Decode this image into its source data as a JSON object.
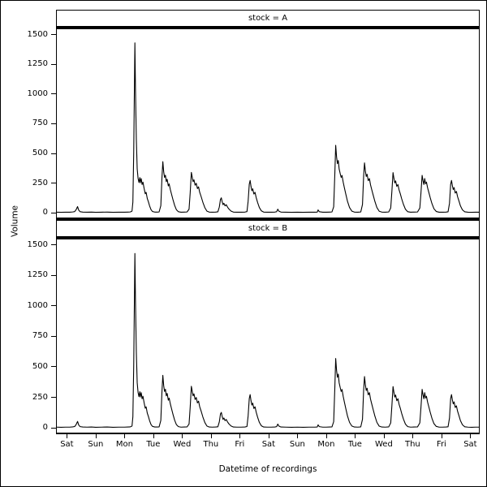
{
  "figure": {
    "background": "#ffffff",
    "line_color": "#000000",
    "text_color": "#000000"
  },
  "chart_data": {
    "type": "line",
    "title": "",
    "xlabel": "Datetime of recordings",
    "ylabel": "Volume",
    "facets": [
      {
        "title": "stock = A",
        "series": "volume"
      },
      {
        "title": "stock = B",
        "series": "volume"
      }
    ],
    "x_units": "days",
    "x_tick_values": [
      0,
      1,
      2,
      3,
      4,
      5,
      6,
      7,
      8,
      9,
      10,
      11,
      12,
      13,
      14
    ],
    "x_tick_labels": [
      "Sat",
      "Sun",
      "Mon",
      "Tue",
      "Wed",
      "Thu",
      "Fri",
      "Sat",
      "Sun",
      "Mon",
      "Tue",
      "Wed",
      "Thu",
      "Fri",
      "Sat"
    ],
    "y_tick_values": [
      0,
      250,
      500,
      750,
      1000,
      1250,
      1500
    ],
    "y_tick_labels": [
      "0",
      "250",
      "500",
      "750",
      "1000",
      "1250",
      "1500"
    ],
    "xlim": [
      -0.35,
      14.3
    ],
    "ylim": [
      -40,
      1545
    ],
    "grid": false,
    "legend": false,
    "series": {
      "volume": [
        [
          -0.35,
          5
        ],
        [
          -0.2,
          4
        ],
        [
          -0.05,
          5
        ],
        [
          0.1,
          5
        ],
        [
          0.2,
          7
        ],
        [
          0.27,
          10
        ],
        [
          0.32,
          26
        ],
        [
          0.37,
          52
        ],
        [
          0.41,
          22
        ],
        [
          0.46,
          9
        ],
        [
          0.55,
          6
        ],
        [
          0.7,
          5
        ],
        [
          0.85,
          6
        ],
        [
          1.0,
          4
        ],
        [
          1.2,
          5
        ],
        [
          1.4,
          6
        ],
        [
          1.6,
          4
        ],
        [
          1.8,
          5
        ],
        [
          2.0,
          5
        ],
        [
          2.12,
          6
        ],
        [
          2.2,
          7
        ],
        [
          2.26,
          14
        ],
        [
          2.29,
          90
        ],
        [
          2.32,
          520
        ],
        [
          2.36,
          1430
        ],
        [
          2.38,
          1050
        ],
        [
          2.41,
          620
        ],
        [
          2.44,
          370
        ],
        [
          2.47,
          290
        ],
        [
          2.5,
          255
        ],
        [
          2.53,
          296
        ],
        [
          2.55,
          252
        ],
        [
          2.58,
          288
        ],
        [
          2.61,
          238
        ],
        [
          2.64,
          258
        ],
        [
          2.68,
          205
        ],
        [
          2.72,
          160
        ],
        [
          2.75,
          172
        ],
        [
          2.79,
          120
        ],
        [
          2.83,
          92
        ],
        [
          2.87,
          58
        ],
        [
          2.92,
          26
        ],
        [
          2.97,
          11
        ],
        [
          3.05,
          6
        ],
        [
          3.14,
          6
        ],
        [
          3.2,
          7
        ],
        [
          3.26,
          60
        ],
        [
          3.3,
          300
        ],
        [
          3.33,
          430
        ],
        [
          3.36,
          345
        ],
        [
          3.39,
          298
        ],
        [
          3.42,
          316
        ],
        [
          3.45,
          262
        ],
        [
          3.48,
          282
        ],
        [
          3.52,
          226
        ],
        [
          3.55,
          243
        ],
        [
          3.59,
          196
        ],
        [
          3.63,
          158
        ],
        [
          3.68,
          112
        ],
        [
          3.74,
          62
        ],
        [
          3.8,
          26
        ],
        [
          3.87,
          9
        ],
        [
          3.96,
          5
        ],
        [
          4.08,
          6
        ],
        [
          4.17,
          7
        ],
        [
          4.24,
          30
        ],
        [
          4.28,
          170
        ],
        [
          4.32,
          340
        ],
        [
          4.35,
          300
        ],
        [
          4.38,
          262
        ],
        [
          4.41,
          278
        ],
        [
          4.45,
          232
        ],
        [
          4.49,
          248
        ],
        [
          4.53,
          204
        ],
        [
          4.57,
          218
        ],
        [
          4.61,
          172
        ],
        [
          4.66,
          136
        ],
        [
          4.72,
          88
        ],
        [
          4.79,
          42
        ],
        [
          4.86,
          14
        ],
        [
          4.94,
          6
        ],
        [
          5.05,
          5
        ],
        [
          5.16,
          6
        ],
        [
          5.24,
          8
        ],
        [
          5.29,
          48
        ],
        [
          5.33,
          112
        ],
        [
          5.36,
          126
        ],
        [
          5.39,
          92
        ],
        [
          5.42,
          68
        ],
        [
          5.45,
          80
        ],
        [
          5.49,
          58
        ],
        [
          5.53,
          68
        ],
        [
          5.58,
          46
        ],
        [
          5.63,
          30
        ],
        [
          5.7,
          14
        ],
        [
          5.78,
          6
        ],
        [
          5.9,
          5
        ],
        [
          6.05,
          5
        ],
        [
          6.18,
          6
        ],
        [
          6.25,
          10
        ],
        [
          6.29,
          96
        ],
        [
          6.33,
          240
        ],
        [
          6.36,
          272
        ],
        [
          6.39,
          222
        ],
        [
          6.42,
          186
        ],
        [
          6.45,
          202
        ],
        [
          6.49,
          158
        ],
        [
          6.53,
          172
        ],
        [
          6.57,
          128
        ],
        [
          6.62,
          86
        ],
        [
          6.68,
          44
        ],
        [
          6.75,
          16
        ],
        [
          6.83,
          6
        ],
        [
          6.95,
          5
        ],
        [
          7.1,
          5
        ],
        [
          7.22,
          6
        ],
        [
          7.28,
          9
        ],
        [
          7.32,
          30
        ],
        [
          7.36,
          13
        ],
        [
          7.43,
          6
        ],
        [
          7.6,
          5
        ],
        [
          7.8,
          4
        ],
        [
          8.0,
          5
        ],
        [
          8.2,
          4
        ],
        [
          8.4,
          5
        ],
        [
          8.6,
          5
        ],
        [
          8.69,
          6
        ],
        [
          8.72,
          24
        ],
        [
          8.76,
          9
        ],
        [
          8.88,
          5
        ],
        [
          9.0,
          5
        ],
        [
          9.12,
          6
        ],
        [
          9.2,
          7
        ],
        [
          9.26,
          50
        ],
        [
          9.3,
          330
        ],
        [
          9.33,
          568
        ],
        [
          9.36,
          470
        ],
        [
          9.39,
          414
        ],
        [
          9.42,
          440
        ],
        [
          9.45,
          368
        ],
        [
          9.49,
          326
        ],
        [
          9.52,
          298
        ],
        [
          9.55,
          314
        ],
        [
          9.59,
          258
        ],
        [
          9.63,
          212
        ],
        [
          9.68,
          158
        ],
        [
          9.74,
          96
        ],
        [
          9.81,
          44
        ],
        [
          9.89,
          14
        ],
        [
          9.98,
          6
        ],
        [
          10.1,
          5
        ],
        [
          10.2,
          7
        ],
        [
          10.26,
          70
        ],
        [
          10.3,
          310
        ],
        [
          10.33,
          420
        ],
        [
          10.36,
          352
        ],
        [
          10.39,
          306
        ],
        [
          10.42,
          324
        ],
        [
          10.46,
          270
        ],
        [
          10.5,
          288
        ],
        [
          10.54,
          234
        ],
        [
          10.58,
          196
        ],
        [
          10.63,
          150
        ],
        [
          10.69,
          96
        ],
        [
          10.76,
          44
        ],
        [
          10.84,
          13
        ],
        [
          10.93,
          6
        ],
        [
          11.05,
          5
        ],
        [
          11.17,
          7
        ],
        [
          11.24,
          40
        ],
        [
          11.28,
          180
        ],
        [
          11.32,
          338
        ],
        [
          11.35,
          292
        ],
        [
          11.38,
          252
        ],
        [
          11.41,
          268
        ],
        [
          11.45,
          222
        ],
        [
          11.49,
          238
        ],
        [
          11.53,
          192
        ],
        [
          11.57,
          162
        ],
        [
          11.62,
          118
        ],
        [
          11.68,
          72
        ],
        [
          11.75,
          30
        ],
        [
          11.83,
          9
        ],
        [
          11.93,
          5
        ],
        [
          12.05,
          6
        ],
        [
          12.17,
          7
        ],
        [
          12.25,
          40
        ],
        [
          12.29,
          170
        ],
        [
          12.33,
          315
        ],
        [
          12.36,
          272
        ],
        [
          12.39,
          238
        ],
        [
          12.42,
          288
        ],
        [
          12.45,
          244
        ],
        [
          12.48,
          258
        ],
        [
          12.52,
          210
        ],
        [
          12.56,
          174
        ],
        [
          12.61,
          128
        ],
        [
          12.67,
          78
        ],
        [
          12.74,
          34
        ],
        [
          12.82,
          11
        ],
        [
          12.92,
          5
        ],
        [
          13.04,
          5
        ],
        [
          13.16,
          6
        ],
        [
          13.23,
          8
        ],
        [
          13.28,
          80
        ],
        [
          13.32,
          240
        ],
        [
          13.35,
          272
        ],
        [
          13.38,
          228
        ],
        [
          13.41,
          196
        ],
        [
          13.44,
          212
        ],
        [
          13.48,
          166
        ],
        [
          13.52,
          180
        ],
        [
          13.56,
          136
        ],
        [
          13.61,
          98
        ],
        [
          13.66,
          58
        ],
        [
          13.73,
          24
        ],
        [
          13.81,
          8
        ],
        [
          13.92,
          5
        ],
        [
          14.05,
          4
        ],
        [
          14.18,
          5
        ],
        [
          14.3,
          5
        ]
      ]
    }
  }
}
